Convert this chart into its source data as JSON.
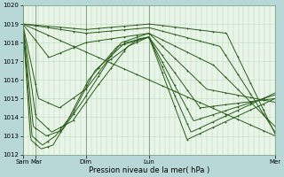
{
  "xlabel": "Pression niveau de la mer( hPa )",
  "ylim": [
    1012,
    1020
  ],
  "yticks": [
    1012,
    1013,
    1014,
    1015,
    1016,
    1017,
    1018,
    1019,
    1020
  ],
  "bg_color": "#b8d8d8",
  "plot_bg_color": "#e8f5e8",
  "grid_color_v": "#b0d0b0",
  "grid_color_h": "#c0dcc0",
  "line_color": "#2a5c1a",
  "series_defs": [
    {
      "xk": [
        0,
        192
      ],
      "yk": [
        1019.0,
        1013.0
      ]
    },
    {
      "xk": [
        0,
        48,
        96,
        155,
        192
      ],
      "yk": [
        1019.0,
        1018.7,
        1019.0,
        1018.5,
        1013.1
      ]
    },
    {
      "xk": [
        0,
        48,
        96,
        150,
        192
      ],
      "yk": [
        1019.0,
        1018.5,
        1018.8,
        1017.8,
        1013.2
      ]
    },
    {
      "xk": [
        0,
        20,
        48,
        96,
        145,
        192
      ],
      "yk": [
        1019.0,
        1017.2,
        1018.0,
        1018.5,
        1016.8,
        1013.5
      ]
    },
    {
      "xk": [
        0,
        12,
        28,
        48,
        75,
        96,
        140,
        192
      ],
      "yk": [
        1019.0,
        1015.0,
        1014.5,
        1015.5,
        1018.0,
        1018.5,
        1015.5,
        1014.8
      ]
    },
    {
      "xk": [
        0,
        10,
        22,
        38,
        55,
        80,
        96,
        135,
        192
      ],
      "yk": [
        1019.0,
        1014.0,
        1013.2,
        1013.8,
        1015.5,
        1017.8,
        1018.3,
        1014.5,
        1015.0
      ]
    },
    {
      "xk": [
        0,
        8,
        18,
        30,
        45,
        65,
        88,
        96,
        130,
        192
      ],
      "yk": [
        1019.0,
        1013.5,
        1013.0,
        1013.3,
        1014.8,
        1017.0,
        1018.2,
        1018.3,
        1013.8,
        1015.2
      ]
    },
    {
      "xk": [
        0,
        7,
        15,
        25,
        38,
        55,
        78,
        96,
        128,
        192
      ],
      "yk": [
        1019.0,
        1013.0,
        1012.5,
        1013.0,
        1014.2,
        1016.5,
        1018.0,
        1018.3,
        1013.2,
        1015.3
      ]
    },
    {
      "xk": [
        0,
        6,
        14,
        23,
        34,
        50,
        72,
        96,
        125,
        192
      ],
      "yk": [
        1019.0,
        1012.8,
        1012.3,
        1012.5,
        1013.8,
        1016.0,
        1017.8,
        1018.3,
        1012.8,
        1015.0
      ]
    }
  ],
  "x_tick_positions": [
    0,
    10,
    48,
    96,
    192
  ],
  "x_tick_labels": [
    "Sam",
    "Mar",
    "Dim",
    "Lun",
    "Mer"
  ],
  "vline_positions": [
    0,
    10,
    48,
    96,
    192
  ],
  "xlim": [
    0,
    192
  ]
}
